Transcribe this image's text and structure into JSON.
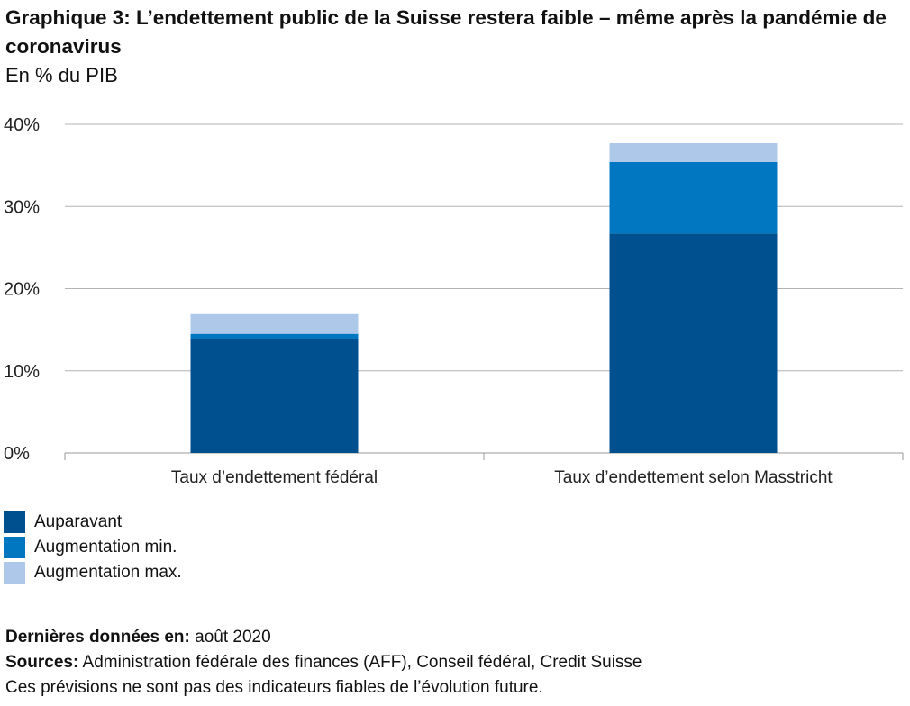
{
  "header": {
    "title": "Graphique 3: L’endettement public de la Suisse restera faible – même après la pandémie de coronavirus",
    "subtitle": "En % du PIB"
  },
  "colors": {
    "auparavant": "#004f8f",
    "aug_min": "#0077c0",
    "aug_max": "#aec8e9",
    "grid": "#b3b3b3",
    "axis": "#999999",
    "text": "#222222"
  },
  "chart_data": {
    "type": "bar",
    "stacked": true,
    "categories": [
      "Taux d’endettement fédéral",
      "Taux d’endettement selon Masstricht"
    ],
    "series": [
      {
        "name": "Auparavant",
        "values": [
          13.9,
          26.7
        ]
      },
      {
        "name": "Augmentation min.",
        "values": [
          0.6,
          8.7
        ]
      },
      {
        "name": "Augmentation max.",
        "values": [
          2.4,
          2.3
        ]
      }
    ],
    "ylim": [
      0,
      40
    ],
    "yticks": [
      "0%",
      "10%",
      "20%",
      "30%",
      "40%"
    ],
    "grid": true,
    "legend": "bottom-left"
  },
  "footer": {
    "date_label": "Dernières données en:",
    "date_value": "août 2020",
    "sources_label": "Sources:",
    "sources_value": "Administration fédérale des finances (AFF), Conseil fédéral, Credit Suisse",
    "disclaimer": "Ces prévisions ne sont pas des indicateurs fiables de l’évolution future."
  }
}
